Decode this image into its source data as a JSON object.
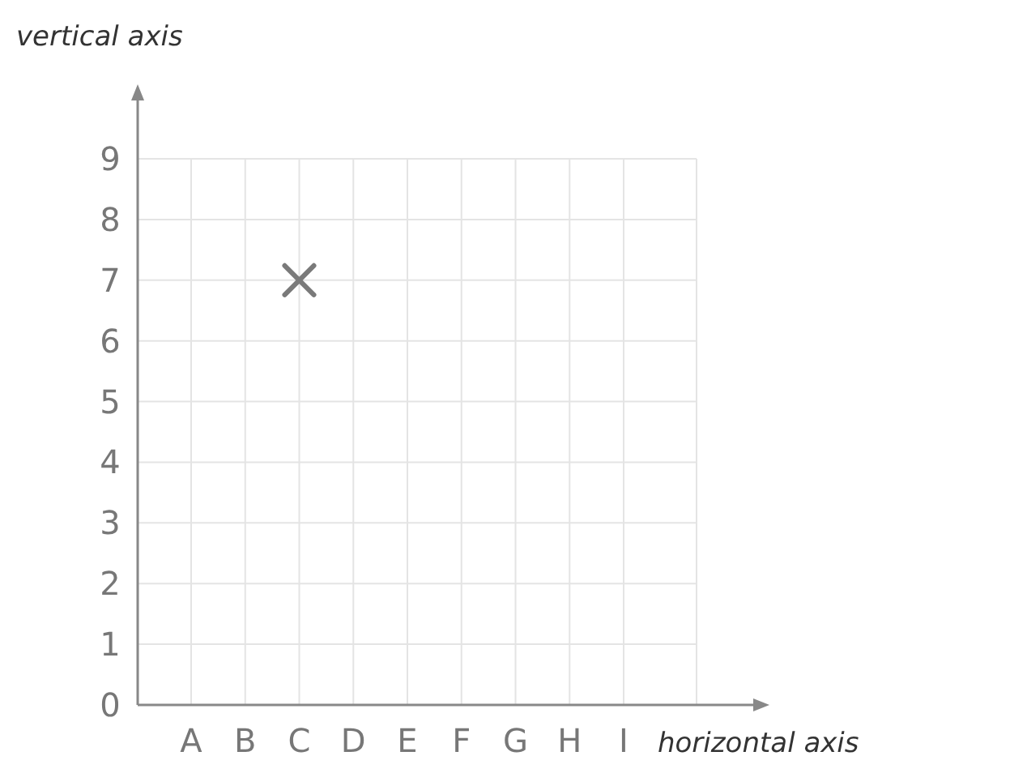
{
  "chart_data": {
    "type": "scatter",
    "xlabel": "horizontal axis",
    "ylabel": "vertical axis",
    "categories": [
      "A",
      "B",
      "C",
      "D",
      "E",
      "F",
      "G",
      "H",
      "I"
    ],
    "series": [
      {
        "color": "#7a7a7a",
        "x": [
          "C"
        ],
        "values": [
          7
        ]
      }
    ],
    "ylim": [
      0,
      9
    ],
    "yticks": [
      0,
      1,
      2,
      3,
      4,
      5,
      6,
      7,
      8,
      9
    ],
    "grid": true,
    "marker": "cross"
  }
}
